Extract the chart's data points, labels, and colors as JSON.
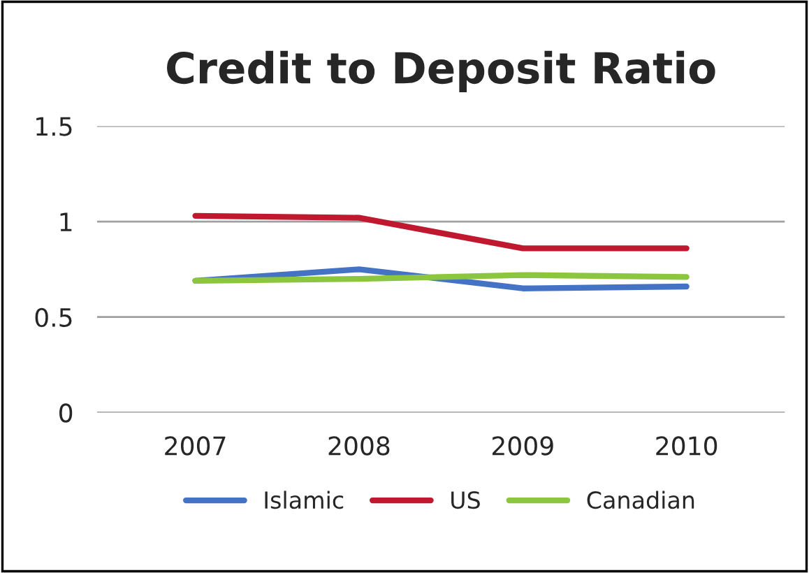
{
  "chart_data": {
    "type": "line",
    "title": "Credit to Deposit Ratio",
    "categories": [
      "2007",
      "2008",
      "2009",
      "2010"
    ],
    "series": [
      {
        "name": "Islamic",
        "color": "#4472c4",
        "values": [
          0.69,
          0.75,
          0.65,
          0.66
        ]
      },
      {
        "name": "US",
        "color": "#c0182e",
        "values": [
          1.03,
          1.02,
          0.86,
          0.86
        ]
      },
      {
        "name": "Canadian",
        "color": "#8cc63e",
        "values": [
          0.69,
          0.7,
          0.72,
          0.71
        ]
      }
    ],
    "ylim": [
      0,
      1.5
    ],
    "yticks": [
      0,
      0.5,
      1,
      1.5
    ],
    "grid": "y",
    "legend": "bottom",
    "marker": "none",
    "line_style": "solid"
  }
}
